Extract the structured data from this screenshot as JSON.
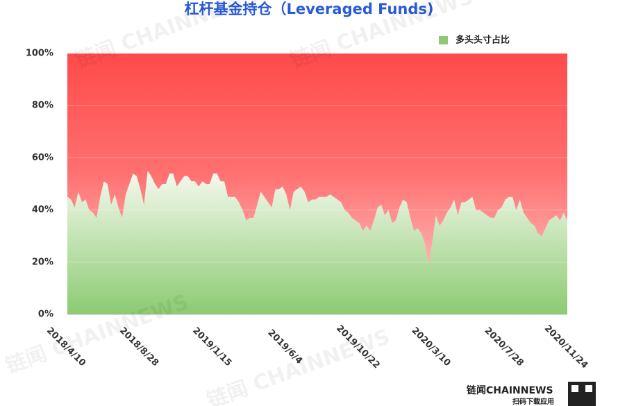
{
  "chart_data": {
    "type": "area",
    "title": "杠杆基金持仓（Leveraged Funds)",
    "categories": [
      "2018/4/10",
      null,
      null,
      null,
      null,
      null,
      null,
      null,
      null,
      null,
      null,
      null,
      null,
      null,
      null,
      null,
      null,
      null,
      null,
      null,
      "2018/8/28",
      null,
      null,
      null,
      null,
      null,
      null,
      null,
      null,
      null,
      null,
      null,
      null,
      null,
      null,
      null,
      null,
      null,
      null,
      null,
      "2019/1/15",
      null,
      null,
      null,
      null,
      null,
      null,
      null,
      null,
      null,
      null,
      null,
      null,
      null,
      null,
      null,
      null,
      null,
      null,
      null,
      "2019/6/4",
      null,
      null,
      null,
      null,
      null,
      null,
      null,
      null,
      null,
      null,
      null,
      null,
      null,
      null,
      null,
      null,
      null,
      null,
      null,
      "2019/10/22",
      null,
      null,
      null,
      null,
      null,
      null,
      null,
      null,
      null,
      null,
      null,
      null,
      null,
      null,
      null,
      null,
      null,
      null,
      null,
      "2020/3/10",
      null,
      null,
      null,
      null,
      null,
      null,
      null,
      null,
      null,
      null,
      null,
      null,
      null,
      null,
      null,
      null,
      null,
      null,
      null,
      "2020/7/28",
      null,
      null,
      null,
      null,
      null,
      null,
      null,
      null,
      null,
      null,
      null,
      null,
      null,
      null,
      null,
      null,
      "2020/11/24"
    ],
    "series": [
      {
        "name": "多头头寸占比",
        "color": "#8ccb72",
        "values": [
          45,
          44,
          41,
          47,
          43,
          44,
          40,
          39,
          37,
          45,
          51,
          50,
          42,
          46,
          41,
          37,
          46,
          50,
          54,
          53,
          48,
          42,
          55,
          53,
          50,
          48,
          50,
          50,
          54,
          54,
          49,
          51,
          53,
          53,
          51,
          51,
          49,
          51,
          50,
          50,
          54,
          54,
          51,
          51,
          45,
          45,
          45,
          43,
          40,
          36,
          37,
          37,
          42,
          47,
          45,
          43,
          41,
          48,
          48,
          49,
          46,
          40,
          47,
          48,
          49,
          47,
          43,
          44,
          44,
          45,
          45,
          45,
          46,
          45,
          44,
          43,
          40,
          39,
          37,
          36,
          35,
          32,
          34,
          32,
          36,
          41,
          42,
          38,
          40,
          35,
          36,
          41,
          44,
          43,
          37,
          32,
          33,
          31,
          27,
          19,
          28,
          38,
          34,
          36,
          39,
          41,
          44,
          38,
          43,
          43,
          44,
          45,
          40,
          40,
          39,
          38,
          37,
          37,
          40,
          41,
          44,
          45,
          45,
          40,
          44,
          39,
          37,
          35,
          34,
          31,
          30,
          33,
          36,
          37,
          38,
          36,
          39,
          36
        ]
      }
    ],
    "ylim": [
      0,
      100
    ],
    "yticks": [
      {
        "value": 0,
        "label": "0%"
      },
      {
        "value": 20,
        "label": "20%"
      },
      {
        "value": 40,
        "label": "40%"
      },
      {
        "value": 60,
        "label": "60%"
      },
      {
        "value": 80,
        "label": "80%"
      },
      {
        "value": 100,
        "label": "100%"
      }
    ],
    "grid": true,
    "legend": "top-right",
    "watermark": "链闻 CHAINNEWS",
    "brand": "链闻CHAINNEWS",
    "brand_sub": "扫码下载应用"
  }
}
